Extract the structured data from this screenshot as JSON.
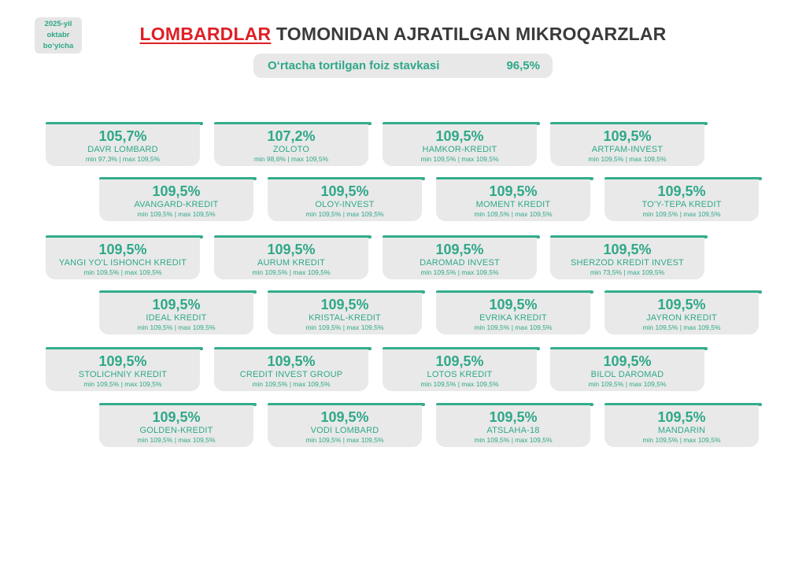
{
  "badge": {
    "line1": "2025-yil",
    "line2": "oktabr",
    "line3": "bo‘yicha"
  },
  "header": {
    "title_accent": "LOMBARDLAR",
    "title_rest": " TOMONIDAN AJRATILGAN MIKROQARZLAR"
  },
  "average": {
    "label": "O‘rtacha tortilgan foiz stavkasi",
    "value": "96,5%"
  },
  "colors": {
    "accent_green": "#33ad8c",
    "text_green": "#2fa889",
    "title_red": "#e01f26",
    "card_bg": "#e9e9e9"
  },
  "cards": [
    {
      "value": "105,7%",
      "name": "DAVR LOMBARD",
      "range": "min 97,3% | max 109,5%"
    },
    {
      "value": "107,2%",
      "name": "ZOLOTO",
      "range": "min 98,6% | max 109,5%"
    },
    {
      "value": "109,5%",
      "name": "HAMKOR-KREDIT",
      "range": "min 109,5% | max 109,5%"
    },
    {
      "value": "109,5%",
      "name": "ARTFAM-INVEST",
      "range": "min 109,5% | max 109,5%"
    },
    {
      "value": "109,5%",
      "name": "AVANGARD-KREDIT",
      "range": "min 109,5% | max 109,5%"
    },
    {
      "value": "109,5%",
      "name": "OLOY-INVEST",
      "range": "min 109,5% | max 109,5%"
    },
    {
      "value": "109,5%",
      "name": "MOMENT KREDIT",
      "range": "min 109,5% | max 109,5%"
    },
    {
      "value": "109,5%",
      "name": "TO'Y-TEPA KREDIT",
      "range": "min 109,5% | max 109,5%"
    },
    {
      "value": "109,5%",
      "name": "YANGI YO'L ISHONCH KREDIT",
      "range": "min 109,5% | max 109,5%"
    },
    {
      "value": "109,5%",
      "name": "AURUM KREDIT",
      "range": "min 109,5% | max 109,5%"
    },
    {
      "value": "109,5%",
      "name": "DAROMAD INVEST",
      "range": "min 109,5% | max 109,5%"
    },
    {
      "value": "109,5%",
      "name": "SHERZOD KREDIT INVEST",
      "range": "min 73,5% | max 109,5%"
    },
    {
      "value": "109,5%",
      "name": "IDEAL KREDIT",
      "range": "min 109,5% | max 109,5%"
    },
    {
      "value": "109,5%",
      "name": "KRISTAL-KREDIT",
      "range": "min 109,5% | max 109,5%"
    },
    {
      "value": "109,5%",
      "name": "EVRIKA KREDIT",
      "range": "min 109,5% | max 109,5%"
    },
    {
      "value": "109,5%",
      "name": "JAYRON KREDIT",
      "range": "min 109,5% | max 109,5%"
    },
    {
      "value": "109,5%",
      "name": "STOLICHNIY KREDIT",
      "range": "min 109,5% | max 109,5%"
    },
    {
      "value": "109,5%",
      "name": "CREDIT INVEST GROUP",
      "range": "min 109,5% | max 109,5%"
    },
    {
      "value": "109,5%",
      "name": "LOTOS KREDIT",
      "range": "min 109,5% | max 109,5%"
    },
    {
      "value": "109,5%",
      "name": "BILOL DAROMAD",
      "range": "min 109,5% | max 109,5%"
    },
    {
      "value": "109,5%",
      "name": "GOLDEN-KREDIT",
      "range": "min 109,5% | max 109,5%"
    },
    {
      "value": "109,5%",
      "name": "VODI LOMBARD",
      "range": "min 109,5% | max 109,5%"
    },
    {
      "value": "109,5%",
      "name": "ATSLAHA-18",
      "range": "min 109,5% | max 109,5%"
    },
    {
      "value": "109,5%",
      "name": "MANDARIN",
      "range": "min 109,5% | max 109,5%"
    }
  ]
}
